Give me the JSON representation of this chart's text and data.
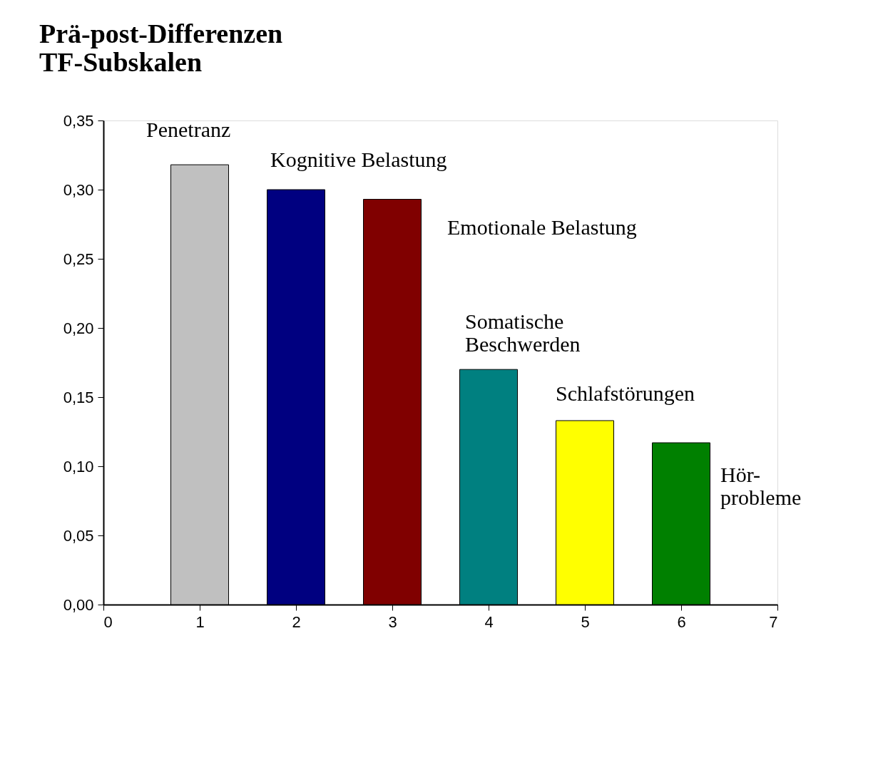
{
  "chart_data": {
    "type": "bar",
    "title": "Prä-post-Differenzen",
    "subtitle": "TF-Subskalen",
    "x": [
      1,
      2,
      3,
      4,
      5,
      6
    ],
    "values": [
      0.318,
      0.3,
      0.293,
      0.17,
      0.133,
      0.117
    ],
    "colors": [
      "#c0c0c0",
      "#000080",
      "#800000",
      "#008080",
      "#ffff00",
      "#008000"
    ],
    "xlim": [
      0,
      7
    ],
    "xticks": [
      0,
      1,
      2,
      3,
      4,
      5,
      6,
      7
    ],
    "ylim": [
      0,
      0.35
    ],
    "yticks": [
      {
        "value": 0,
        "label": "0,00"
      },
      {
        "value": 0.05,
        "label": "0,05"
      },
      {
        "value": 0.1,
        "label": "0,10"
      },
      {
        "value": 0.15,
        "label": "0,15"
      },
      {
        "value": 0.2,
        "label": "0,20"
      },
      {
        "value": 0.25,
        "label": "0,25"
      },
      {
        "value": 0.3,
        "label": "0,30"
      },
      {
        "value": 0.35,
        "label": "0,35"
      }
    ],
    "grid": false,
    "annotations": [
      {
        "text": "Penetranz",
        "x": 1,
        "y": 0.318
      },
      {
        "text": "Kognitive Belastung",
        "x": 2,
        "y": 0.3
      },
      {
        "text": "Emotionale Belastung",
        "x": 3,
        "y": 0.293
      },
      {
        "text": "Somatische\nBeschwerden",
        "x": 4,
        "y": 0.17
      },
      {
        "text": "Schlafstörungen",
        "x": 5,
        "y": 0.133
      },
      {
        "text": "Hör-\nprobleme",
        "x": 6,
        "y": 0.117
      }
    ]
  }
}
